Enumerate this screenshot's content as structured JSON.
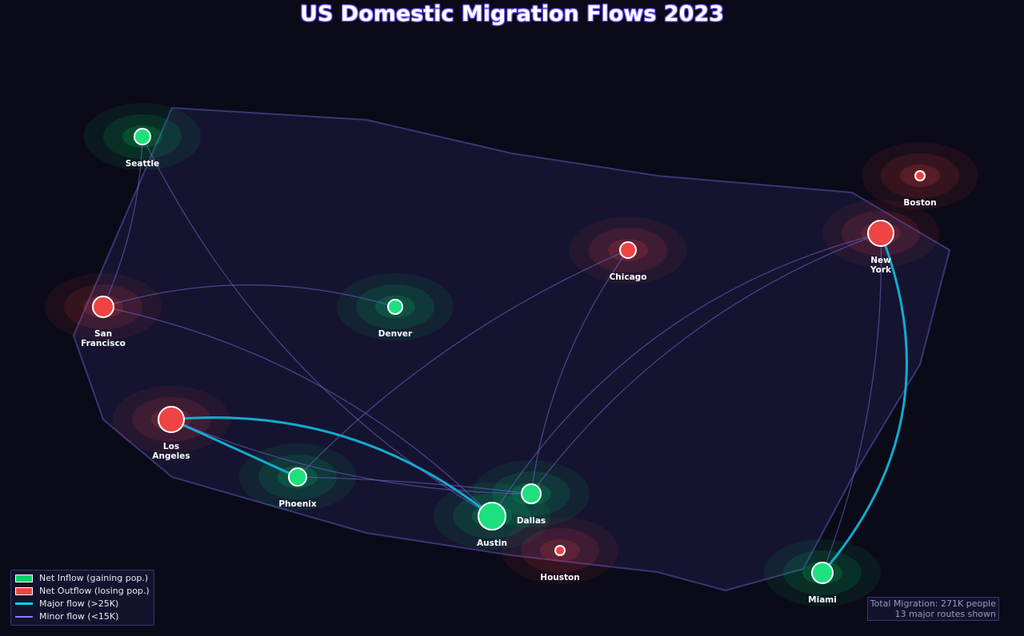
{
  "title": "US Domestic Migration Flows 2023",
  "nodes": [
    {
      "label": "Seattle"
    },
    {
      "label": "Boston"
    },
    {
      "label": "New York"
    },
    {
      "label": "Chicago"
    },
    {
      "label": "San Francisco"
    },
    {
      "label": "Denver"
    },
    {
      "label": "Los Angeles"
    },
    {
      "label": "Phoenix"
    },
    {
      "label": "Dallas"
    },
    {
      "label": "Austin"
    },
    {
      "label": "Houston"
    },
    {
      "label": "Miami"
    }
  ],
  "legend": [
    "Net Inflow (gaining pop.)",
    "Net Outflow (losing pop.)",
    "Major flow (>25K)",
    "Minor flow (<15K)"
  ],
  "stats": [
    "Total Migration: 271K people",
    "13 major routes shown"
  ]
}
